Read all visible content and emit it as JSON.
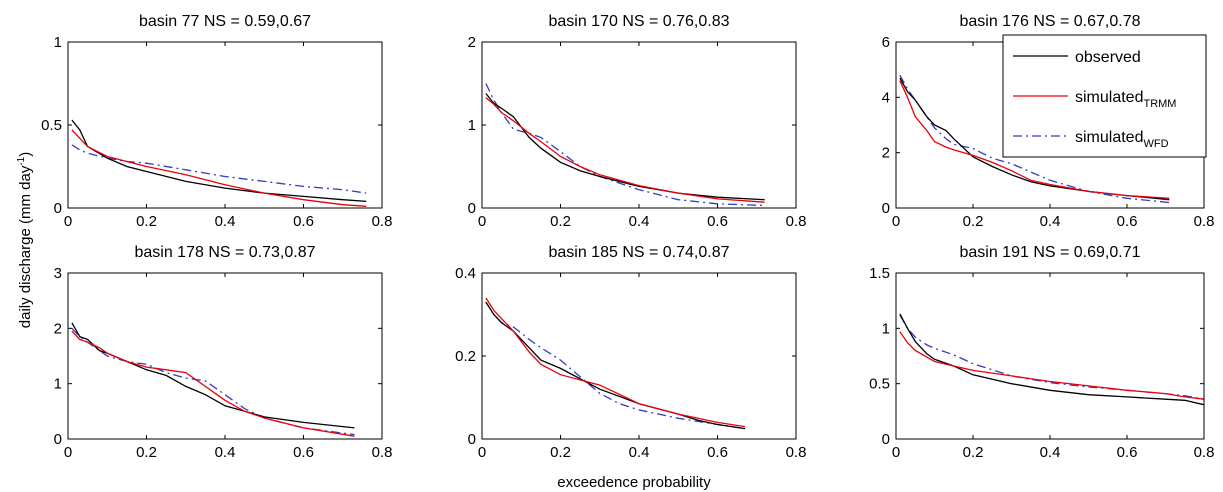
{
  "figure": {
    "xlabel": "exceedence probability",
    "ylabel_main": "daily discharge (mm day",
    "ylabel_sup": "-1",
    "ylabel_end": ")"
  },
  "legend": {
    "placement": "top-right of panel 3",
    "entries": [
      {
        "main": "observed",
        "sub": "",
        "color": "#000000",
        "dash": "solid"
      },
      {
        "main": "simulated",
        "sub": "TRMM",
        "color": "#e8000b",
        "dash": "solid"
      },
      {
        "main": "simulated",
        "sub": "WFD",
        "color": "#2e3fc2",
        "dash": "dashdot"
      }
    ]
  },
  "series_colors": {
    "observed": "#000000",
    "trmm": "#e8000b",
    "wfd": "#2e3fc2"
  },
  "chart_data": [
    {
      "type": "line",
      "title": "basin 77 NS = 0.59,0.67",
      "xlim": [
        0,
        0.8
      ],
      "ylim": [
        0,
        1
      ],
      "xticks": [
        0,
        0.2,
        0.4,
        0.6,
        0.8
      ],
      "xticklabels": [
        "0",
        "0.2",
        "0.4",
        "0.6",
        "0.8"
      ],
      "yticks": [
        0,
        0.5,
        1
      ],
      "yticklabels": [
        "0",
        "0.5",
        "1"
      ],
      "series": [
        {
          "key": "observed",
          "x": [
            0.01,
            0.03,
            0.05,
            0.1,
            0.15,
            0.2,
            0.3,
            0.4,
            0.5,
            0.6,
            0.7,
            0.76
          ],
          "y": [
            0.53,
            0.47,
            0.37,
            0.3,
            0.25,
            0.22,
            0.16,
            0.12,
            0.09,
            0.07,
            0.05,
            0.04
          ]
        },
        {
          "key": "trmm",
          "x": [
            0.01,
            0.03,
            0.05,
            0.1,
            0.15,
            0.2,
            0.3,
            0.4,
            0.5,
            0.6,
            0.7,
            0.76
          ],
          "y": [
            0.47,
            0.42,
            0.37,
            0.31,
            0.28,
            0.25,
            0.2,
            0.14,
            0.09,
            0.05,
            0.02,
            0.01
          ]
        },
        {
          "key": "wfd",
          "x": [
            0.01,
            0.03,
            0.05,
            0.1,
            0.15,
            0.2,
            0.3,
            0.4,
            0.5,
            0.6,
            0.7,
            0.76
          ],
          "y": [
            0.38,
            0.35,
            0.33,
            0.3,
            0.28,
            0.27,
            0.23,
            0.19,
            0.16,
            0.13,
            0.11,
            0.09
          ]
        }
      ]
    },
    {
      "type": "line",
      "title": "basin 170 NS = 0.76,0.83",
      "xlim": [
        0,
        0.8
      ],
      "ylim": [
        0,
        2
      ],
      "xticks": [
        0,
        0.2,
        0.4,
        0.6,
        0.8
      ],
      "xticklabels": [
        "0",
        "0.2",
        "0.4",
        "0.6",
        "0.8"
      ],
      "yticks": [
        0,
        1,
        2
      ],
      "yticklabels": [
        "0",
        "1",
        "2"
      ],
      "series": [
        {
          "key": "observed",
          "x": [
            0.01,
            0.03,
            0.05,
            0.08,
            0.12,
            0.15,
            0.2,
            0.25,
            0.3,
            0.4,
            0.5,
            0.6,
            0.72
          ],
          "y": [
            1.38,
            1.26,
            1.2,
            1.1,
            0.85,
            0.72,
            0.55,
            0.45,
            0.38,
            0.26,
            0.18,
            0.13,
            0.1
          ]
        },
        {
          "key": "trmm",
          "x": [
            0.01,
            0.03,
            0.05,
            0.08,
            0.12,
            0.15,
            0.2,
            0.25,
            0.3,
            0.4,
            0.5,
            0.6,
            0.72
          ],
          "y": [
            1.33,
            1.25,
            1.15,
            1.05,
            0.9,
            0.8,
            0.62,
            0.5,
            0.4,
            0.27,
            0.18,
            0.11,
            0.07
          ]
        },
        {
          "key": "wfd",
          "x": [
            0.01,
            0.03,
            0.05,
            0.08,
            0.12,
            0.15,
            0.2,
            0.25,
            0.3,
            0.4,
            0.5,
            0.6,
            0.72
          ],
          "y": [
            1.5,
            1.3,
            1.15,
            0.95,
            0.9,
            0.85,
            0.68,
            0.5,
            0.38,
            0.22,
            0.1,
            0.05,
            0.03
          ]
        }
      ]
    },
    {
      "type": "line",
      "title": "basin 176 NS = 0.67,0.78",
      "xlim": [
        0,
        0.8
      ],
      "ylim": [
        0,
        6
      ],
      "xticks": [
        0,
        0.2,
        0.4,
        0.6,
        0.8
      ],
      "xticklabels": [
        "0",
        "0.2",
        "0.4",
        "0.6",
        "0.8"
      ],
      "yticks": [
        0,
        2,
        4,
        6
      ],
      "yticklabels": [
        "0",
        "2",
        "4",
        "6"
      ],
      "series": [
        {
          "key": "observed",
          "x": [
            0.01,
            0.03,
            0.05,
            0.08,
            0.1,
            0.13,
            0.15,
            0.2,
            0.25,
            0.3,
            0.35,
            0.4,
            0.5,
            0.6,
            0.71
          ],
          "y": [
            4.7,
            4.2,
            3.9,
            3.3,
            3.0,
            2.8,
            2.5,
            1.85,
            1.5,
            1.2,
            0.95,
            0.8,
            0.6,
            0.45,
            0.3
          ]
        },
        {
          "key": "trmm",
          "x": [
            0.01,
            0.03,
            0.05,
            0.08,
            0.1,
            0.13,
            0.15,
            0.2,
            0.25,
            0.3,
            0.35,
            0.4,
            0.5,
            0.6,
            0.71
          ],
          "y": [
            4.6,
            4.0,
            3.3,
            2.8,
            2.4,
            2.2,
            2.1,
            1.9,
            1.65,
            1.35,
            1.0,
            0.85,
            0.6,
            0.45,
            0.35
          ]
        },
        {
          "key": "wfd",
          "x": [
            0.01,
            0.03,
            0.05,
            0.08,
            0.1,
            0.13,
            0.15,
            0.2,
            0.25,
            0.3,
            0.35,
            0.4,
            0.5,
            0.6,
            0.71
          ],
          "y": [
            4.8,
            4.3,
            3.9,
            3.3,
            2.9,
            2.5,
            2.3,
            2.15,
            1.8,
            1.6,
            1.3,
            1.0,
            0.6,
            0.35,
            0.2
          ]
        }
      ]
    },
    {
      "type": "line",
      "title": "basin 178 NS = 0.73,0.87",
      "xlim": [
        0,
        0.8
      ],
      "ylim": [
        0,
        3
      ],
      "xticks": [
        0,
        0.2,
        0.4,
        0.6,
        0.8
      ],
      "xticklabels": [
        "0",
        "0.2",
        "0.4",
        "0.6",
        "0.8"
      ],
      "yticks": [
        0,
        1,
        2,
        3
      ],
      "yticklabels": [
        "0",
        "1",
        "2",
        "3"
      ],
      "series": [
        {
          "key": "observed",
          "x": [
            0.01,
            0.03,
            0.05,
            0.08,
            0.1,
            0.15,
            0.2,
            0.25,
            0.3,
            0.35,
            0.4,
            0.45,
            0.5,
            0.6,
            0.73
          ],
          "y": [
            2.1,
            1.85,
            1.8,
            1.6,
            1.55,
            1.4,
            1.25,
            1.15,
            0.95,
            0.8,
            0.6,
            0.5,
            0.4,
            0.3,
            0.2
          ]
        },
        {
          "key": "trmm",
          "x": [
            0.01,
            0.03,
            0.05,
            0.08,
            0.1,
            0.15,
            0.2,
            0.25,
            0.3,
            0.35,
            0.4,
            0.45,
            0.5,
            0.6,
            0.73
          ],
          "y": [
            1.95,
            1.8,
            1.75,
            1.65,
            1.55,
            1.4,
            1.3,
            1.25,
            1.2,
            0.95,
            0.7,
            0.5,
            0.38,
            0.2,
            0.05
          ]
        },
        {
          "key": "wfd",
          "x": [
            0.01,
            0.03,
            0.05,
            0.08,
            0.1,
            0.15,
            0.2,
            0.25,
            0.3,
            0.35,
            0.4,
            0.45,
            0.5,
            0.6,
            0.73
          ],
          "y": [
            2.0,
            1.85,
            1.75,
            1.6,
            1.5,
            1.4,
            1.35,
            1.2,
            1.1,
            1.05,
            0.8,
            0.55,
            0.38,
            0.2,
            0.08
          ]
        }
      ]
    },
    {
      "type": "line",
      "title": "basin 185 NS = 0.74,0.87",
      "xlim": [
        0,
        0.8
      ],
      "ylim": [
        0,
        0.4
      ],
      "xticks": [
        0,
        0.2,
        0.4,
        0.6,
        0.8
      ],
      "xticklabels": [
        "0",
        "0.2",
        "0.4",
        "0.6",
        "0.8"
      ],
      "yticks": [
        0,
        0.2,
        0.4
      ],
      "yticklabels": [
        "0",
        "0.2",
        "0.4"
      ],
      "series": [
        {
          "key": "observed",
          "x": [
            0.01,
            0.03,
            0.05,
            0.08,
            0.12,
            0.15,
            0.2,
            0.3,
            0.4,
            0.5,
            0.55,
            0.6,
            0.67
          ],
          "y": [
            0.33,
            0.3,
            0.28,
            0.26,
            0.22,
            0.19,
            0.17,
            0.12,
            0.085,
            0.06,
            0.045,
            0.035,
            0.025
          ]
        },
        {
          "key": "trmm",
          "x": [
            0.01,
            0.03,
            0.05,
            0.08,
            0.12,
            0.15,
            0.2,
            0.3,
            0.4,
            0.5,
            0.55,
            0.6,
            0.67
          ],
          "y": [
            0.34,
            0.31,
            0.29,
            0.26,
            0.21,
            0.18,
            0.155,
            0.13,
            0.085,
            0.06,
            0.05,
            0.04,
            0.03
          ]
        },
        {
          "key": "wfd",
          "x": [
            0.01,
            0.03,
            0.05,
            0.08,
            0.12,
            0.15,
            0.2,
            0.25,
            0.3,
            0.35,
            0.4,
            0.5,
            0.6,
            0.67
          ],
          "y": [
            0.33,
            0.3,
            0.28,
            0.27,
            0.24,
            0.22,
            0.19,
            0.15,
            0.11,
            0.085,
            0.07,
            0.05,
            0.035,
            0.025
          ]
        }
      ]
    },
    {
      "type": "line",
      "title": "basin 191 NS = 0.69,0.71",
      "xlim": [
        0,
        0.8
      ],
      "ylim": [
        0,
        1.5
      ],
      "xticks": [
        0,
        0.2,
        0.4,
        0.6,
        0.8
      ],
      "xticklabels": [
        "0",
        "0.2",
        "0.4",
        "0.6",
        "0.8"
      ],
      "yticks": [
        0,
        0.5,
        1,
        1.5
      ],
      "yticklabels": [
        "0",
        "0.5",
        "1",
        "1.5"
      ],
      "series": [
        {
          "key": "observed",
          "x": [
            0.01,
            0.03,
            0.05,
            0.08,
            0.1,
            0.15,
            0.2,
            0.3,
            0.4,
            0.5,
            0.6,
            0.7,
            0.75,
            0.8
          ],
          "y": [
            1.13,
            1.0,
            0.88,
            0.77,
            0.72,
            0.66,
            0.58,
            0.5,
            0.44,
            0.4,
            0.38,
            0.36,
            0.35,
            0.31
          ]
        },
        {
          "key": "trmm",
          "x": [
            0.01,
            0.03,
            0.05,
            0.08,
            0.1,
            0.15,
            0.2,
            0.3,
            0.4,
            0.5,
            0.6,
            0.7,
            0.75,
            0.8
          ],
          "y": [
            0.97,
            0.87,
            0.8,
            0.74,
            0.7,
            0.66,
            0.62,
            0.57,
            0.52,
            0.48,
            0.44,
            0.41,
            0.38,
            0.36
          ]
        },
        {
          "key": "wfd",
          "x": [
            0.01,
            0.03,
            0.05,
            0.08,
            0.1,
            0.15,
            0.2,
            0.3,
            0.4,
            0.5,
            0.6,
            0.7,
            0.75,
            0.8
          ],
          "y": [
            1.12,
            1.0,
            0.92,
            0.85,
            0.82,
            0.76,
            0.68,
            0.57,
            0.51,
            0.47,
            0.44,
            0.41,
            0.39,
            0.36
          ]
        }
      ]
    }
  ]
}
